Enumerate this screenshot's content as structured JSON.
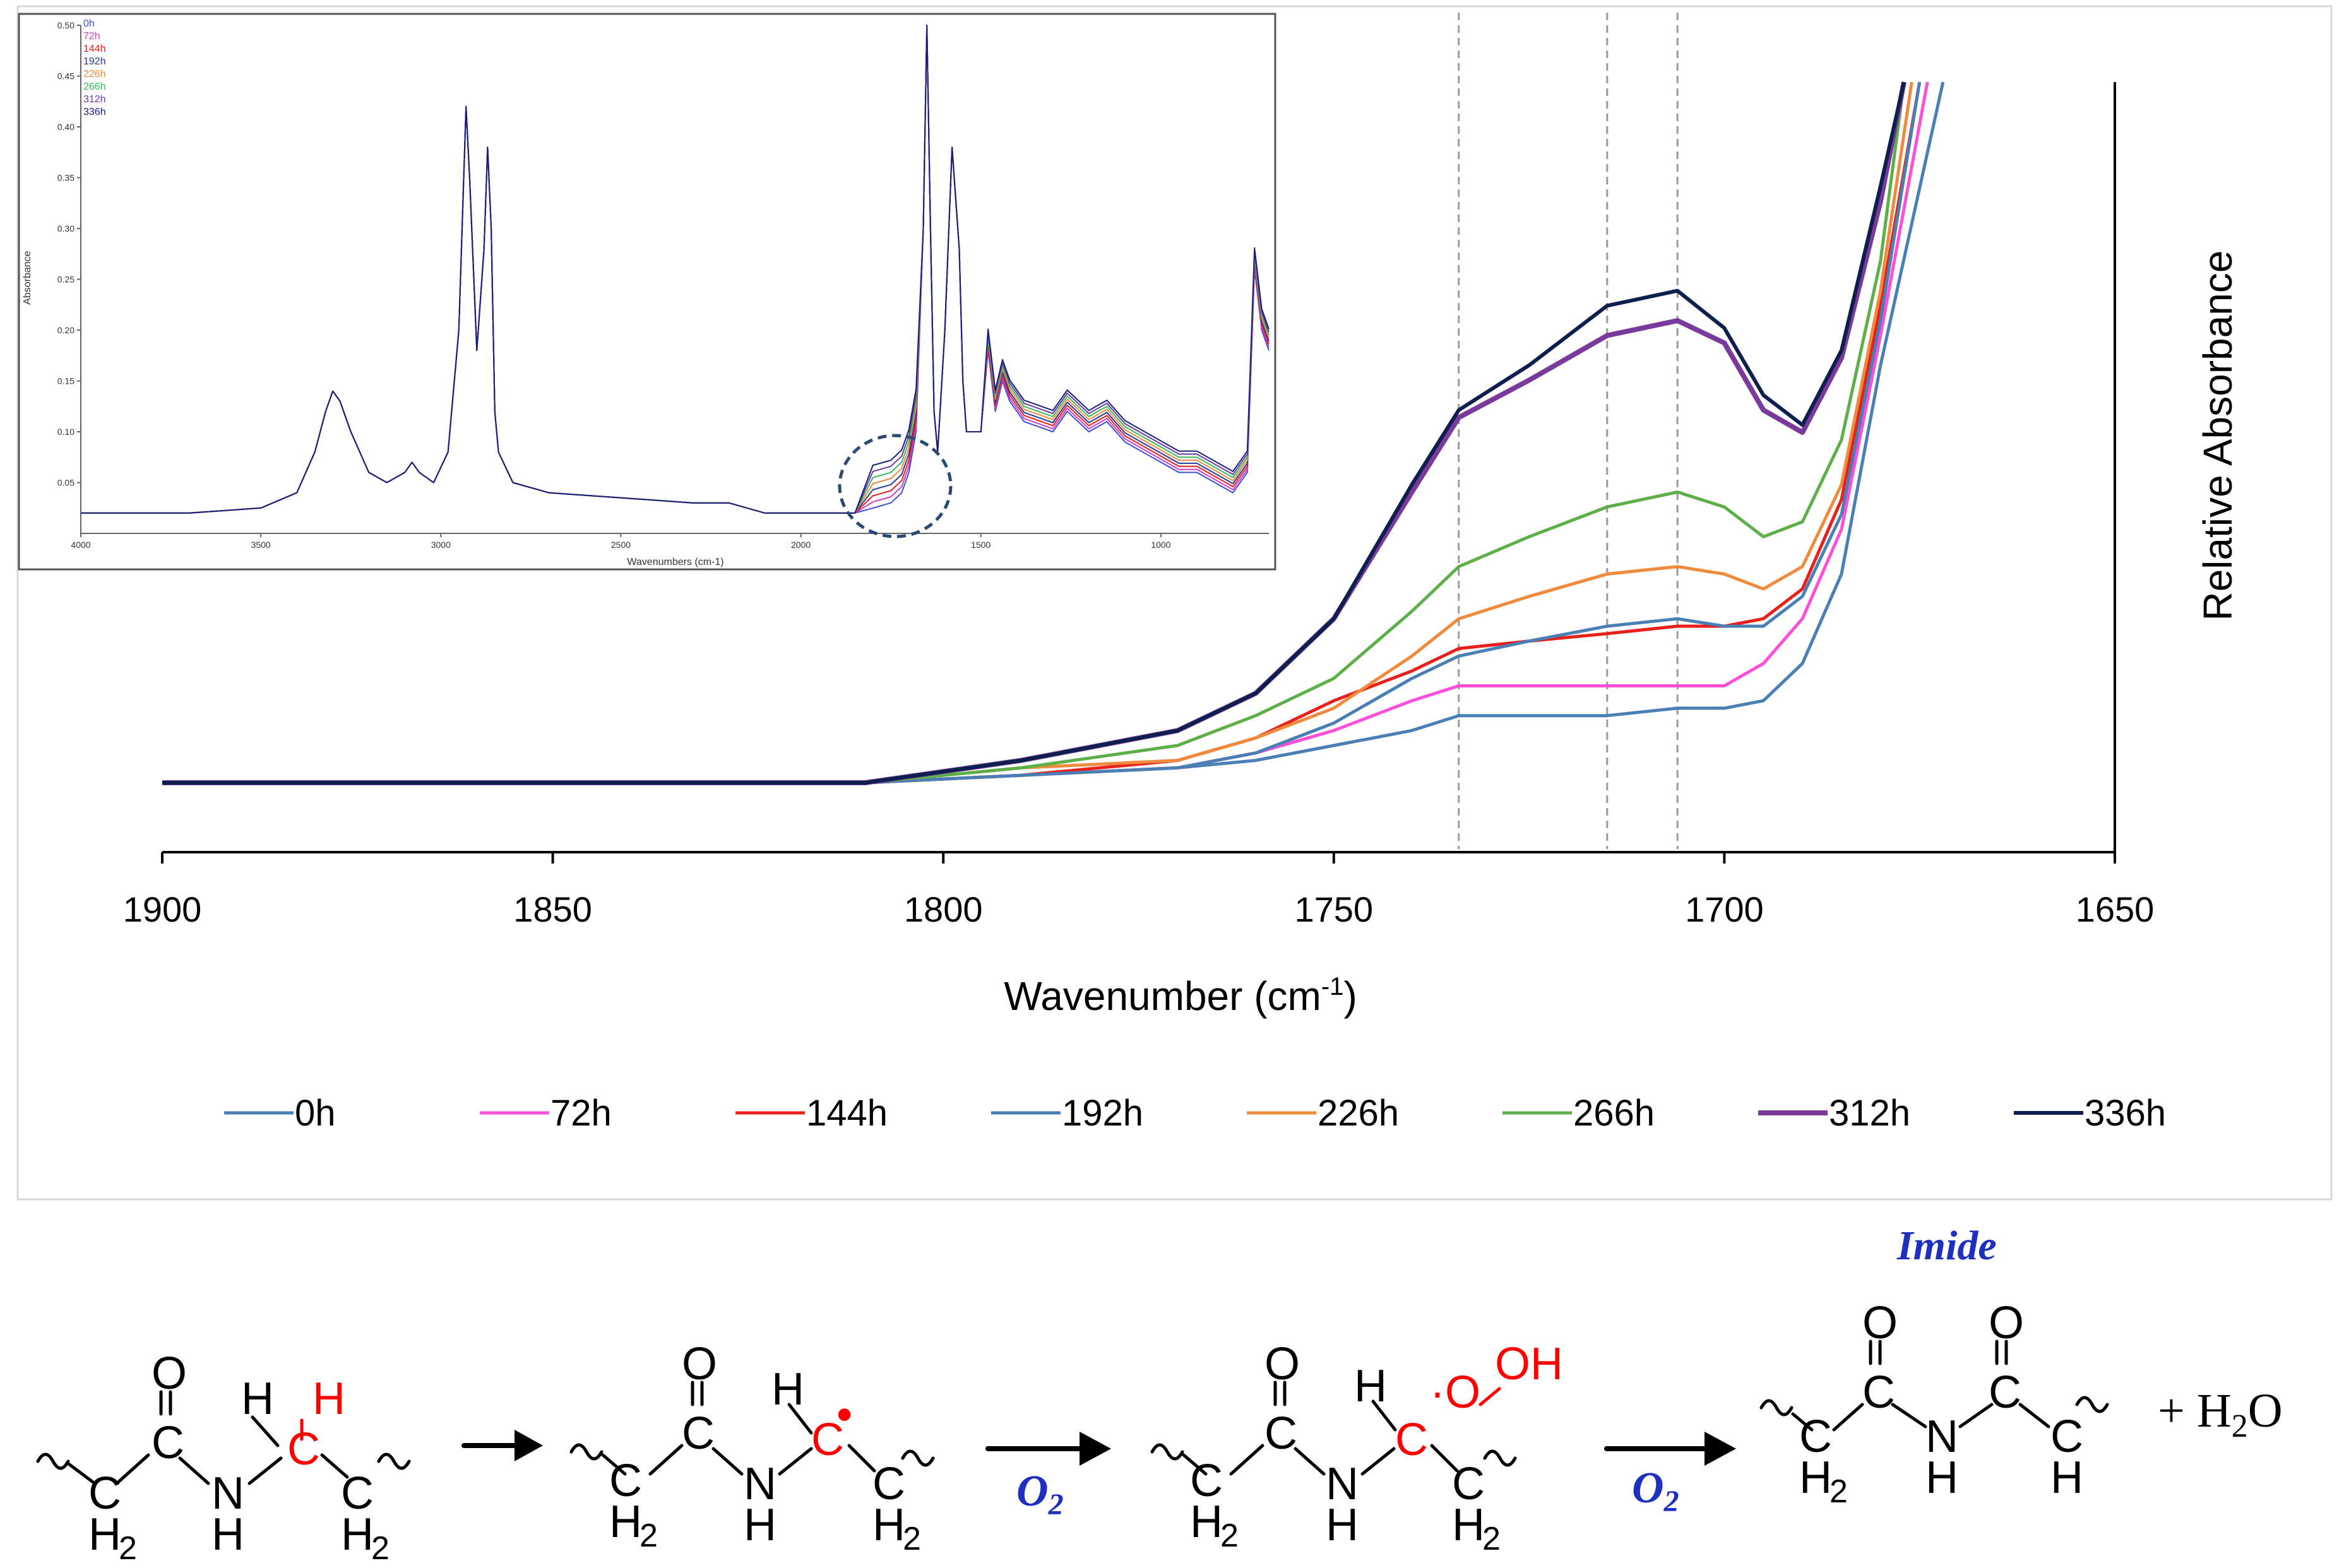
{
  "chart_data": [
    {
      "type": "line",
      "title": "",
      "xlabel": "Wavenumber (cm",
      "xlabel_sup": "-1",
      "xlabel_end": ")",
      "ylabel": "Relative Absorbance",
      "xlim": [
        1900,
        1650
      ],
      "ylim": [
        0,
        1
      ],
      "x_ticks": [
        "1900",
        "1850",
        "1800",
        "1750",
        "1700",
        "1650"
      ],
      "reference_lines_x": [
        1734,
        1715,
        1706
      ],
      "legend_position": "bottom",
      "series": [
        {
          "name": "0h",
          "color": "#4a7fb5",
          "width": 5,
          "x": [
            1900,
            1850,
            1810,
            1790,
            1770,
            1760,
            1750,
            1740,
            1734,
            1725,
            1715,
            1706,
            1700,
            1695,
            1690,
            1685,
            1680,
            1672
          ],
          "y": [
            0.06,
            0.06,
            0.06,
            0.07,
            0.08,
            0.09,
            0.11,
            0.13,
            0.15,
            0.15,
            0.15,
            0.16,
            0.16,
            0.17,
            0.22,
            0.34,
            0.62,
            1.0
          ]
        },
        {
          "name": "72h",
          "color": "#ff4fd8",
          "width": 5,
          "x": [
            1900,
            1850,
            1810,
            1790,
            1770,
            1760,
            1750,
            1740,
            1734,
            1725,
            1715,
            1706,
            1700,
            1695,
            1690,
            1685,
            1680,
            1674
          ],
          "y": [
            0.06,
            0.06,
            0.06,
            0.07,
            0.08,
            0.1,
            0.13,
            0.17,
            0.19,
            0.19,
            0.19,
            0.19,
            0.19,
            0.22,
            0.28,
            0.4,
            0.66,
            1.0
          ]
        },
        {
          "name": "144h",
          "color": "#e8201c",
          "width": 5,
          "x": [
            1900,
            1850,
            1810,
            1790,
            1770,
            1760,
            1750,
            1740,
            1734,
            1725,
            1715,
            1706,
            1700,
            1695,
            1690,
            1685,
            1680,
            1675
          ],
          "y": [
            0.06,
            0.06,
            0.06,
            0.07,
            0.09,
            0.12,
            0.17,
            0.21,
            0.24,
            0.25,
            0.26,
            0.27,
            0.27,
            0.28,
            0.32,
            0.44,
            0.7,
            1.0
          ]
        },
        {
          "name": "192h",
          "color": "#4a7fb5",
          "width": 5,
          "x": [
            1900,
            1850,
            1810,
            1790,
            1770,
            1760,
            1750,
            1740,
            1734,
            1725,
            1715,
            1706,
            1700,
            1695,
            1690,
            1685,
            1680,
            1675
          ],
          "y": [
            0.06,
            0.06,
            0.06,
            0.07,
            0.08,
            0.1,
            0.14,
            0.2,
            0.23,
            0.25,
            0.27,
            0.28,
            0.27,
            0.27,
            0.31,
            0.42,
            0.68,
            1.0
          ]
        },
        {
          "name": "226h",
          "color": "#f08a3c",
          "width": 5,
          "x": [
            1900,
            1850,
            1810,
            1790,
            1770,
            1760,
            1750,
            1740,
            1734,
            1725,
            1715,
            1706,
            1700,
            1695,
            1690,
            1685,
            1680,
            1676
          ],
          "y": [
            0.06,
            0.06,
            0.06,
            0.08,
            0.09,
            0.12,
            0.16,
            0.23,
            0.28,
            0.31,
            0.34,
            0.35,
            0.34,
            0.32,
            0.35,
            0.46,
            0.72,
            1.0
          ]
        },
        {
          "name": "266h",
          "color": "#5daf4a",
          "width": 5,
          "x": [
            1900,
            1850,
            1810,
            1790,
            1770,
            1760,
            1750,
            1740,
            1734,
            1725,
            1715,
            1706,
            1700,
            1695,
            1690,
            1685,
            1680,
            1677
          ],
          "y": [
            0.06,
            0.06,
            0.06,
            0.08,
            0.11,
            0.15,
            0.2,
            0.29,
            0.35,
            0.39,
            0.43,
            0.45,
            0.43,
            0.39,
            0.41,
            0.52,
            0.76,
            1.0
          ]
        },
        {
          "name": "312h",
          "color": "#7a3a9c",
          "width": 8,
          "x": [
            1900,
            1850,
            1810,
            1790,
            1770,
            1760,
            1750,
            1740,
            1734,
            1725,
            1715,
            1706,
            1700,
            1695,
            1690,
            1685,
            1680,
            1677
          ],
          "y": [
            0.06,
            0.06,
            0.06,
            0.09,
            0.13,
            0.18,
            0.28,
            0.45,
            0.55,
            0.6,
            0.66,
            0.68,
            0.65,
            0.56,
            0.53,
            0.63,
            0.84,
            1.0
          ]
        },
        {
          "name": "336h",
          "color": "#0d1f4d",
          "width": 6,
          "x": [
            1900,
            1850,
            1810,
            1790,
            1770,
            1760,
            1750,
            1740,
            1734,
            1725,
            1715,
            1706,
            1700,
            1695,
            1690,
            1685,
            1680,
            1677
          ],
          "y": [
            0.06,
            0.06,
            0.06,
            0.09,
            0.13,
            0.18,
            0.28,
            0.46,
            0.56,
            0.62,
            0.7,
            0.72,
            0.67,
            0.58,
            0.54,
            0.64,
            0.86,
            1.0
          ]
        }
      ]
    },
    {
      "type": "line",
      "title": "",
      "xlabel": "Wavenumbers (cm-1)",
      "ylabel": "Absorbance",
      "xlim": [
        4000,
        700
      ],
      "ylim": [
        0.0,
        0.5
      ],
      "x_ticks": [
        "4000",
        "3500",
        "3000",
        "2500",
        "2000",
        "1500",
        "1000"
      ],
      "y_ticks": [
        "0.50",
        "0.45",
        "0.40",
        "0.35",
        "0.30",
        "0.25",
        "0.20",
        "0.15",
        "0.10",
        "0.05"
      ],
      "legend": [
        {
          "name": "0h",
          "color": "#3b4fd6"
        },
        {
          "name": "72h",
          "color": "#d23cc9"
        },
        {
          "name": "144h",
          "color": "#e8201c"
        },
        {
          "name": "192h",
          "color": "#243a9b"
        },
        {
          "name": "226h",
          "color": "#f08a3c"
        },
        {
          "name": "266h",
          "color": "#3aba5a"
        },
        {
          "name": "312h",
          "color": "#6a3ba8"
        },
        {
          "name": "336h",
          "color": "#18207a"
        }
      ],
      "spectrum": {
        "x": [
          4000,
          3700,
          3500,
          3400,
          3350,
          3320,
          3300,
          3280,
          3250,
          3200,
          3150,
          3100,
          3080,
          3060,
          3020,
          2980,
          2950,
          2930,
          2920,
          2900,
          2880,
          2870,
          2860,
          2850,
          2840,
          2800,
          2700,
          2500,
          2300,
          2200,
          2100,
          2000,
          1950,
          1850,
          1800,
          1750,
          1720,
          1700,
          1680,
          1660,
          1650,
          1640,
          1630,
          1620,
          1600,
          1580,
          1560,
          1550,
          1540,
          1500,
          1480,
          1460,
          1440,
          1420,
          1380,
          1300,
          1260,
          1200,
          1150,
          1100,
          1050,
          1000,
          950,
          900,
          850,
          800,
          760,
          740,
          720,
          700
        ],
        "y": [
          0.02,
          0.02,
          0.025,
          0.04,
          0.08,
          0.12,
          0.14,
          0.13,
          0.1,
          0.06,
          0.05,
          0.06,
          0.07,
          0.06,
          0.05,
          0.08,
          0.2,
          0.42,
          0.35,
          0.18,
          0.28,
          0.38,
          0.3,
          0.12,
          0.08,
          0.05,
          0.04,
          0.035,
          0.03,
          0.03,
          0.02,
          0.02,
          0.02,
          0.02,
          0.025,
          0.03,
          0.04,
          0.06,
          0.1,
          0.3,
          0.5,
          0.3,
          0.12,
          0.08,
          0.2,
          0.38,
          0.28,
          0.15,
          0.1,
          0.1,
          0.18,
          0.12,
          0.15,
          0.13,
          0.11,
          0.1,
          0.12,
          0.1,
          0.11,
          0.09,
          0.08,
          0.07,
          0.06,
          0.06,
          0.05,
          0.04,
          0.06,
          0.26,
          0.2,
          0.18
        ]
      },
      "annotation": "dashed circle around 1750–1700 cm-1 carbonyl region"
    }
  ],
  "scheme": {
    "o2_label": "O",
    "o2_sub": "2",
    "imide_label": "Imide",
    "water_label": "+ H",
    "water_sub": "2",
    "water_end": "O",
    "atoms": {
      "O": "O",
      "H": "H",
      "C": "C",
      "N": "N",
      "OH": "OH",
      "dot": "•",
      "Odot": "·O"
    },
    "subscript_2": "2"
  },
  "colors": {
    "axis": "#000000",
    "ref_line": "#9a9a9a",
    "frame": "#d0d0d0",
    "circle": "#2b4a73",
    "red": "#ff0000",
    "blue": "#1f2fbf"
  }
}
